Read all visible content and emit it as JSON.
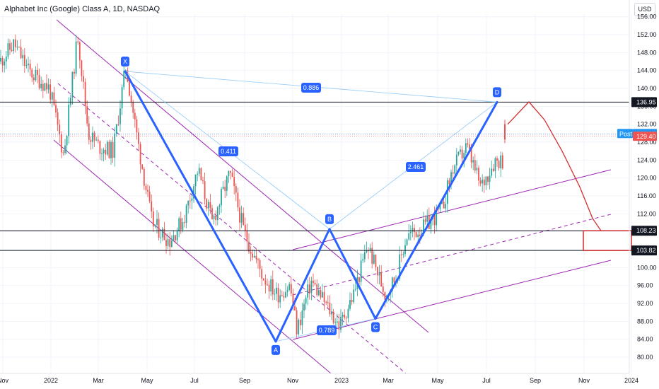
{
  "header": {
    "title": "Alphabet Inc (Google) Class A, 1D, NASDAQ"
  },
  "currency_button": {
    "label": "USD"
  },
  "colors": {
    "candle_up": "#26a69a",
    "candle_down": "#ef5350",
    "pattern": "#2962ff",
    "channel": "#9c27b0",
    "projection": "#d32f2f",
    "fib_link": "#90caf9",
    "level_line": "#131722"
  },
  "chart_data": {
    "type": "candlestick",
    "x_tick_labels": [
      "Nov",
      "2022",
      "Mar",
      "May",
      "Jul",
      "Sep",
      "Nov",
      "2023",
      "Mar",
      "May",
      "Jul",
      "Sep",
      "Nov",
      "2024"
    ],
    "y_tick_labels": [
      "80.00",
      "84.00",
      "88.00",
      "92.00",
      "96.00",
      "100.00",
      "104.00",
      "108.00",
      "112.00",
      "116.00",
      "120.00",
      "124.00",
      "128.00",
      "132.00",
      "136.00",
      "140.00",
      "144.00",
      "148.00",
      "152.00",
      "156.00"
    ],
    "ylim": [
      78,
      158
    ],
    "harmonic_pattern": {
      "points": [
        {
          "label": "X",
          "value": 143.8
        },
        {
          "label": "A",
          "value": 83.5
        },
        {
          "label": "B",
          "value": 108.6
        },
        {
          "label": "C",
          "value": 88.6
        },
        {
          "label": "D",
          "value": 136.95
        }
      ],
      "ratios": [
        "0.886",
        "0.411",
        "2.461",
        "0.789"
      ]
    },
    "price_levels": [
      {
        "label": "136.95",
        "value": 136.95
      },
      {
        "label": "108.23",
        "value": 108.23
      },
      {
        "label": "103.82",
        "value": 103.82
      }
    ],
    "current_price": {
      "label": "Post",
      "post_value": "129.85",
      "last_value": "129.40"
    },
    "target_zone": {
      "low": 103.82,
      "high": 108.23
    },
    "projection_path": [
      132,
      137,
      133,
      126,
      118,
      111,
      108.2
    ]
  }
}
